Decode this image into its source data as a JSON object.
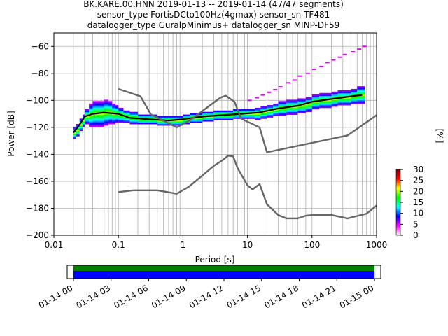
{
  "title_lines": [
    "BK.KARE.00.HNN   2019-01-13 -- 2019-01-14  (47/47 segments)",
    "sensor_type FortisDCto100Hz(4gmax) sensor_sn TF481",
    "datalogger_type GuralpMinimus+ datalogger_sn MINP-DF59"
  ],
  "chart_data": [
    {
      "type": "heatmap",
      "xlabel": "Period [s]",
      "ylabel": "Power [dB]",
      "x_scale": "log",
      "xlim": [
        0.01,
        1000
      ],
      "ylim": [
        -200,
        -50
      ],
      "x_ticks": [
        "0.01",
        "0.1",
        "1",
        "10",
        "100",
        "1000"
      ],
      "y_ticks": [
        "-200",
        "-180",
        "-160",
        "-140",
        "-120",
        "-100",
        "-80",
        "-60"
      ],
      "grid": true,
      "colorbar": {
        "label": "[%]",
        "range": [
          0,
          30
        ],
        "ticks": [
          "0",
          "5",
          "10",
          "15",
          "20",
          "25",
          "30"
        ],
        "colors": [
          "#ffffff",
          "#ff00ff",
          "#0000ff",
          "#00ffff",
          "#00ff00",
          "#ffff00",
          "#ff0000",
          "#800000"
        ]
      },
      "series": [
        {
          "name": "",
          "role": "mode",
          "color": "#000000",
          "points": [
            [
              0.02,
              -124
            ],
            [
              0.025,
              -118
            ],
            [
              0.03,
              -112
            ],
            [
              0.04,
              -110
            ],
            [
              0.06,
              -109
            ],
            [
              0.1,
              -110
            ],
            [
              0.15,
              -113
            ],
            [
              0.3,
              -114
            ],
            [
              0.6,
              -115
            ],
            [
              1,
              -114
            ],
            [
              2,
              -112
            ],
            [
              4,
              -111
            ],
            [
              8,
              -110
            ],
            [
              15,
              -109
            ],
            [
              30,
              -106
            ],
            [
              60,
              -104
            ],
            [
              100,
              -101
            ],
            [
              200,
              -99
            ],
            [
              400,
              -97
            ],
            [
              600,
              -96
            ]
          ]
        },
        {
          "name": "",
          "role": "upper_reference",
          "color": "#666666",
          "points": [
            [
              0.1,
              -91.5
            ],
            [
              0.22,
              -97
            ],
            [
              0.32,
              -110.5
            ],
            [
              0.8,
              -120
            ],
            [
              1.26,
              -115
            ],
            [
              3.8,
              -98
            ],
            [
              4.6,
              -96.5
            ],
            [
              6.3,
              -101
            ],
            [
              7.9,
              -113.5
            ],
            [
              15.4,
              -120
            ],
            [
              20,
              -138.5
            ],
            [
              354.8,
              -126
            ],
            [
              1000,
              -111
            ]
          ]
        },
        {
          "name": "",
          "role": "lower_reference",
          "color": "#666666",
          "points": [
            [
              0.1,
              -168
            ],
            [
              0.17,
              -166.7
            ],
            [
              0.4,
              -166.7
            ],
            [
              0.8,
              -169.2
            ],
            [
              1.26,
              -163.7
            ],
            [
              3.0,
              -148.6
            ],
            [
              4.2,
              -144
            ],
            [
              5.0,
              -141
            ],
            [
              6.0,
              -141.5
            ],
            [
              7.0,
              -150
            ],
            [
              10,
              -163
            ],
            [
              12,
              -166
            ],
            [
              15.4,
              -162
            ],
            [
              20,
              -177
            ],
            [
              30,
              -185
            ],
            [
              40,
              -187.5
            ],
            [
              60,
              -187.5
            ],
            [
              80,
              -185.5
            ],
            [
              100,
              -185
            ],
            [
              200,
              -185
            ],
            [
              354.8,
              -187.5
            ],
            [
              700,
              -184
            ],
            [
              1000,
              -178
            ]
          ]
        }
      ],
      "density": [
        {
          "x": [
            0.02,
            0.022,
            0.025,
            0.028,
            0.03,
            0.035,
            0.04,
            0.05,
            0.06,
            0.07,
            0.08,
            0.09,
            0.1,
            0.12,
            0.15,
            0.2,
            0.25,
            0.3,
            0.4,
            0.5,
            0.6,
            0.8,
            1,
            1.3,
            1.6,
            2,
            2.5,
            3,
            4,
            5,
            6,
            8,
            10,
            13,
            16,
            20,
            25,
            30,
            40,
            50,
            60,
            80,
            100,
            130,
            160,
            200,
            250,
            300,
            400,
            500,
            600
          ],
          "y": [
            -124,
            -122,
            -118,
            -115,
            -112,
            -111,
            -110,
            -110,
            -109,
            -109,
            -110,
            -110,
            -111,
            -112,
            -113,
            -114,
            -114,
            -114,
            -115,
            -115,
            -115,
            -115,
            -114,
            -113,
            -113,
            -112,
            -112,
            -111,
            -111,
            -111,
            -110,
            -110,
            -110,
            -110,
            -109,
            -108,
            -107,
            -106,
            -105,
            -105,
            -104,
            -103,
            -101,
            -100,
            -100,
            -99,
            -98,
            -98,
            -97,
            -96,
            -96
          ],
          "spread": [
            4,
            4,
            4,
            4,
            5,
            8,
            9,
            9,
            9,
            8,
            7,
            6,
            5,
            4,
            4,
            3,
            3,
            3,
            3,
            3,
            3,
            3,
            3,
            3,
            3,
            3,
            3,
            3,
            3,
            3,
            3,
            3,
            3,
            4,
            4,
            4,
            4,
            5,
            5,
            5,
            5,
            5,
            5,
            5,
            5,
            5,
            5,
            5,
            5,
            6,
            6
          ]
        }
      ],
      "outliers": [
        {
          "x": [
            10,
            13,
            16,
            20,
            25,
            30,
            40,
            50,
            60,
            80,
            100,
            130,
            160,
            200,
            250,
            300,
            400,
            500,
            600
          ],
          "y": [
            -100,
            -98,
            -96,
            -94,
            -92,
            -90,
            -87,
            -85,
            -82,
            -80,
            -77,
            -75,
            -72,
            -70,
            -68,
            -66,
            -64,
            -62,
            -60
          ]
        }
      ]
    },
    {
      "type": "bar",
      "role": "data_availability",
      "x_ticks": [
        "01-14 00",
        "01-14 03",
        "01-14 06",
        "01-14 09",
        "01-14 12",
        "01-14 15",
        "01-14 18",
        "01-14 21",
        "01-15 00"
      ],
      "xlim_hours": [
        -0.5,
        24.5
      ],
      "bands": [
        {
          "from_hours": 0,
          "to_hours": 24,
          "color": "#008000",
          "row": "upper"
        },
        {
          "from_hours": 0,
          "to_hours": 24,
          "color": "#0000ff",
          "row": "lower"
        }
      ]
    }
  ]
}
